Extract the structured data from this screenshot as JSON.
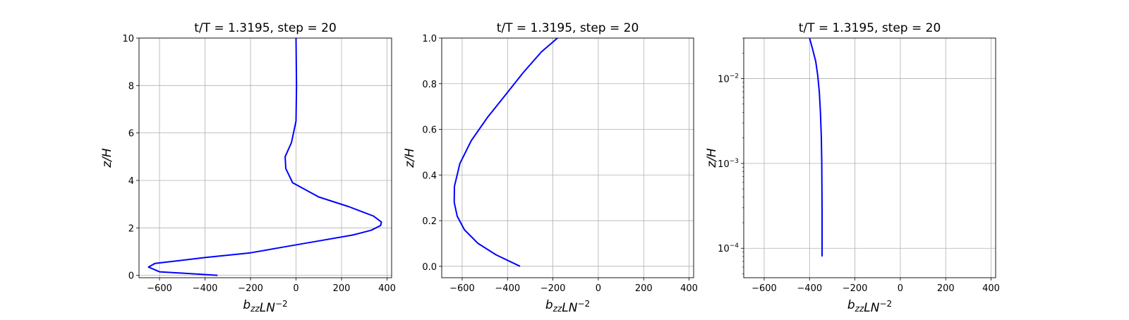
{
  "chart_data": [
    {
      "type": "line",
      "title": "t/T = 1.3195, step = 20",
      "xlabel": "b_zz L N^-2",
      "ylabel": "z/H",
      "xlim": [
        -690,
        420
      ],
      "ylim": [
        -0.1,
        10
      ],
      "yscale": "linear",
      "grid": true,
      "x_ticks": [
        -600,
        -400,
        -200,
        0,
        200,
        400
      ],
      "y_ticks": [
        0,
        2,
        4,
        6,
        8,
        10
      ],
      "x_tick_labels": [
        "−600",
        "−400",
        "−200",
        "0",
        "200",
        "400"
      ],
      "y_tick_labels": [
        "0",
        "2",
        "4",
        "6",
        "8",
        "10"
      ],
      "series": [
        {
          "color": "#0000ff",
          "x": [
            -345,
            -600,
            -648,
            -620,
            -400,
            -200,
            -50,
            100,
            250,
            330,
            372,
            375,
            340,
            230,
            100,
            -15,
            -45,
            -48,
            -20,
            0,
            2,
            0
          ],
          "y": [
            0,
            0.15,
            0.35,
            0.5,
            0.75,
            0.95,
            1.2,
            1.45,
            1.7,
            1.9,
            2.1,
            2.25,
            2.5,
            2.9,
            3.3,
            3.9,
            4.5,
            5.0,
            5.6,
            6.5,
            8.0,
            10.0
          ]
        }
      ]
    },
    {
      "type": "line",
      "title": "t/T = 1.3195, step = 20",
      "xlabel": "b_zz L N^-2",
      "ylabel": "z/H",
      "xlim": [
        -690,
        420
      ],
      "ylim": [
        -0.05,
        1.0
      ],
      "yscale": "linear",
      "grid": true,
      "x_ticks": [
        -600,
        -400,
        -200,
        0,
        200,
        400
      ],
      "y_ticks": [
        0,
        0.2,
        0.4,
        0.6,
        0.8,
        1.0
      ],
      "x_tick_labels": [
        "−600",
        "−400",
        "−200",
        "0",
        "200",
        "400"
      ],
      "y_tick_labels": [
        "0.0",
        "0.2",
        "0.4",
        "0.6",
        "0.8",
        "1.0"
      ],
      "series": [
        {
          "color": "#0000ff",
          "x": [
            -345,
            -450,
            -530,
            -590,
            -622,
            -635,
            -634,
            -610,
            -560,
            -490,
            -410,
            -330,
            -250,
            -180
          ],
          "y": [
            0,
            0.05,
            0.1,
            0.16,
            0.22,
            0.28,
            0.35,
            0.45,
            0.55,
            0.65,
            0.75,
            0.85,
            0.94,
            1.0
          ]
        }
      ]
    },
    {
      "type": "line",
      "title": "t/T = 1.3195, step = 20",
      "xlabel": "b_zz L N^-2",
      "ylabel": "z/H",
      "xlim": [
        -690,
        420
      ],
      "ylim": [
        4.5e-05,
        0.03
      ],
      "yscale": "log",
      "grid": true,
      "x_ticks": [
        -600,
        -400,
        -200,
        0,
        200,
        400
      ],
      "y_ticks": [
        0.0001,
        0.001,
        0.01
      ],
      "x_tick_labels": [
        "−600",
        "−400",
        "−200",
        "0",
        "200",
        "400"
      ],
      "y_tick_labels": [
        {
          "base": "10",
          "exp": "−4"
        },
        {
          "base": "10",
          "exp": "−3"
        },
        {
          "base": "10",
          "exp": "−2"
        }
      ],
      "series": [
        {
          "color": "#0000ff",
          "x": [
            -345,
            -345,
            -346,
            -348,
            -352,
            -357,
            -364,
            -373,
            -388,
            -400
          ],
          "y": [
            8e-05,
            0.0003,
            0.001,
            0.002,
            0.004,
            0.007,
            0.011,
            0.016,
            0.023,
            0.03
          ]
        }
      ]
    }
  ]
}
